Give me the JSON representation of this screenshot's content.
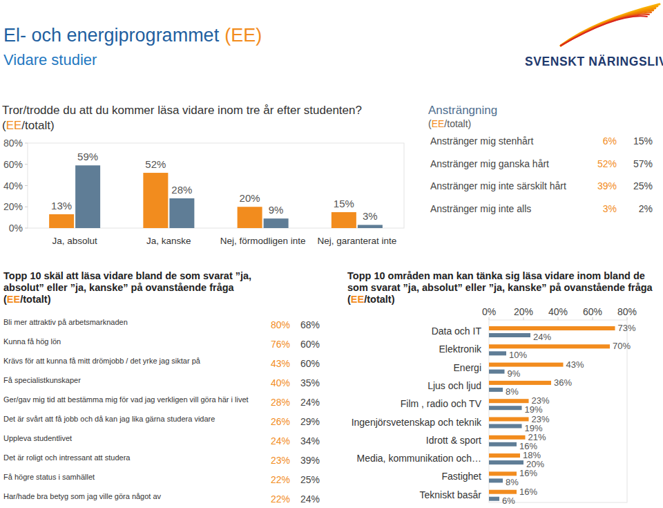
{
  "header": {
    "title": "El- och energiprogrammet",
    "title_tag": "(EE)",
    "subtitle": "Vidare studier",
    "logo": "SVENSKT NÄRINGSLIV"
  },
  "chart_data": [
    {
      "type": "bar",
      "title": "Tror/trodde du att du kommer läsa vidare inom tre år efter studenten?",
      "subtitle": "(EE/totalt)",
      "categories": [
        "Ja, absolut",
        "Ja, kanske",
        "Nej, förmodligen inte",
        "Nej, garanterat inte"
      ],
      "series": [
        {
          "name": "EE",
          "color": "#f28c1e",
          "values": [
            13,
            52,
            20,
            15
          ],
          "value_labels": [
            "13%",
            "52%",
            "20%",
            "15%"
          ]
        },
        {
          "name": "totalt",
          "color": "#5f7d96",
          "values": [
            59,
            28,
            9,
            3
          ],
          "value_labels": [
            "59%",
            "28%",
            "9%",
            "3%"
          ]
        }
      ],
      "ylim": [
        0,
        80
      ],
      "yticks": [
        {
          "value": 0,
          "label": "0%"
        },
        {
          "value": 20,
          "label": "20%"
        },
        {
          "value": 40,
          "label": "40%"
        },
        {
          "value": 60,
          "label": "60%"
        },
        {
          "value": 80,
          "label": "80%"
        }
      ],
      "grid": false,
      "data_labels": true
    },
    {
      "type": "bar",
      "orientation": "horizontal",
      "title": "Topp 10 områden man kan tänka sig läsa vidare inom bland de som svarat ”ja, absolut” eller ”ja, kanske” på ovanstående fråga",
      "subtitle": "(EE/totalt)",
      "categories": [
        "Data och IT",
        "Elektronik",
        "Energi",
        "Ljus och ljud",
        "Film , radio och TV",
        "Ingenjörsvetenskap och teknik",
        "Idrott & sport",
        "Media, kommunikation och…",
        "Fastighet",
        "Tekniskt basår"
      ],
      "series": [
        {
          "name": "EE",
          "color": "#f28c1e",
          "values": [
            73,
            70,
            43,
            36,
            23,
            23,
            21,
            18,
            16,
            16
          ],
          "value_labels": [
            "73%",
            "70%",
            "43%",
            "36%",
            "23%",
            "23%",
            "21%",
            "18%",
            "16%",
            "16%"
          ]
        },
        {
          "name": "totalt",
          "color": "#5f7d96",
          "values": [
            24,
            10,
            9,
            8,
            19,
            19,
            16,
            20,
            8,
            6
          ],
          "value_labels": [
            "24%",
            "10%",
            "9%",
            "8%",
            "19%",
            "19%",
            "16%",
            "20%",
            "8%",
            "6%"
          ]
        }
      ],
      "xlim": [
        0,
        80
      ],
      "xticks": [
        {
          "value": 0,
          "label": "0%"
        },
        {
          "value": 20,
          "label": "20%"
        },
        {
          "value": 40,
          "label": "40%"
        },
        {
          "value": 60,
          "label": "60%"
        },
        {
          "value": 80,
          "label": "80%"
        }
      ],
      "grid": false,
      "data_labels": true
    }
  ],
  "effort_table": {
    "title": "Ansträngning",
    "subtitle": "(EE/totalt)",
    "rows": [
      [
        "Anstränger mig stenhårt",
        "6%",
        "15%"
      ],
      [
        "Anstränger mig ganska hårt",
        "52%",
        "57%"
      ],
      [
        "Anstränger mig inte särskilt hårt",
        "39%",
        "25%"
      ],
      [
        "Anstränger mig inte alls",
        "3%",
        "2%"
      ]
    ]
  },
  "reasons_table": {
    "title": "Topp 10 skäl att läsa vidare bland de som svarat ”ja, absolut” eller ”ja, kanske” på ovanstående fråga",
    "subtitle": "(EE/totalt)",
    "rows": [
      [
        "Bli mer attraktiv på arbetsmarknaden",
        "80%",
        "68%"
      ],
      [
        "Kunna få hög lön",
        "76%",
        "60%"
      ],
      [
        "Krävs för att kunna få mitt drömjobb / det yrke jag siktar på",
        "43%",
        "60%"
      ],
      [
        "Få specialistkunskaper",
        "40%",
        "35%"
      ],
      [
        "Ger/gav mig tid att bestämma mig för vad jag verkligen vill göra här i livet",
        "28%",
        "24%"
      ],
      [
        "Det är svårt att få jobb och då kan jag lika gärna studera vidare",
        "26%",
        "29%"
      ],
      [
        "Uppleva studentlivet",
        "24%",
        "34%"
      ],
      [
        "Det är roligt och intressant att studera",
        "23%",
        "39%"
      ],
      [
        "Få högre status i samhället",
        "22%",
        "25%"
      ],
      [
        "Har/hade bra betyg som jag ville göra något av",
        "22%",
        "24%"
      ]
    ]
  }
}
